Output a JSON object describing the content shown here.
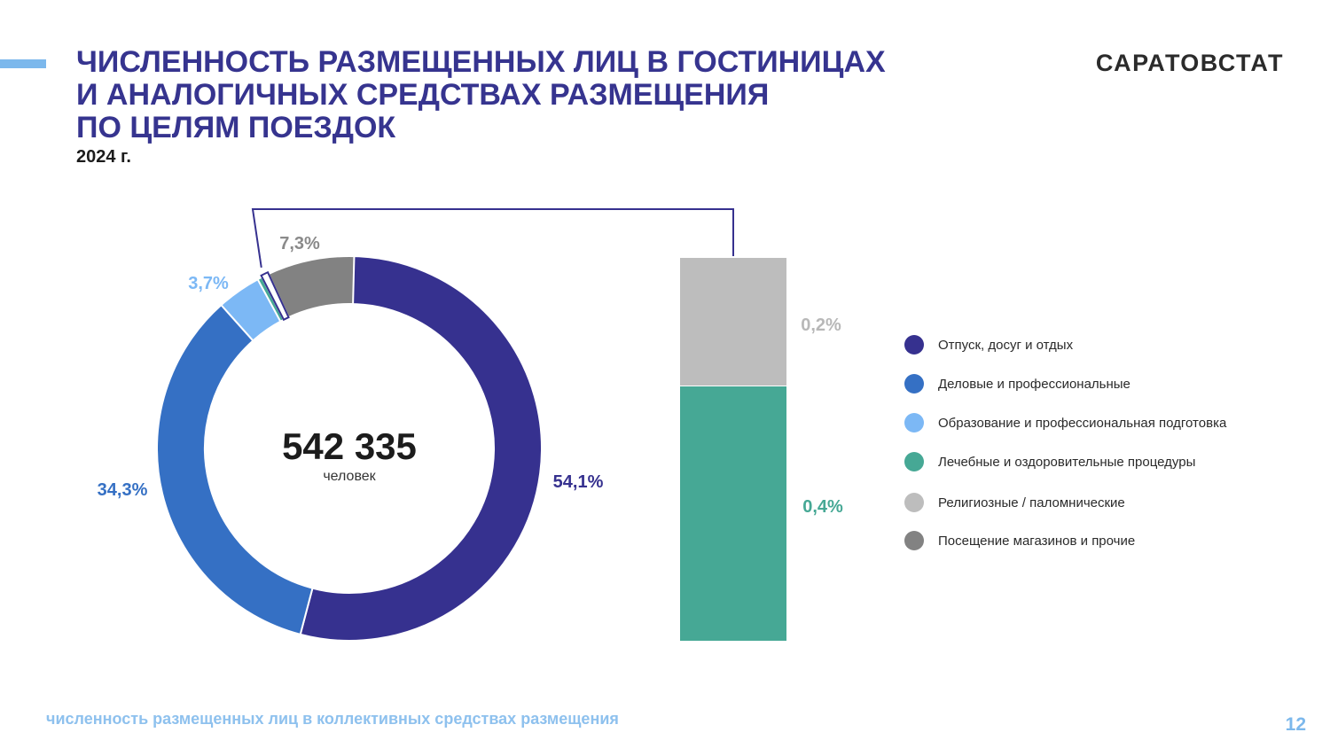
{
  "header": {
    "title": "ЧИСЛЕННОСТЬ РАЗМЕЩЕННЫХ ЛИЦ В ГОСТИНИЦАХ\nИ АНАЛОГИЧНЫХ СРЕДСТВАХ РАЗМЕЩЕНИЯ\nПО ЦЕЛЯМ ПОЕЗДОК",
    "subtitle": "2024 г.",
    "brand": "САРАТОВСТАТ"
  },
  "footer": {
    "note": "численность размещенных лиц в коллективных средствах размещения",
    "page_number": "12"
  },
  "chart_data": {
    "type": "pie",
    "variant": "donut with bar-of-pie breakout",
    "total_value": "542 335",
    "total_unit": "человек",
    "series": [
      {
        "name": "Отпуск, досуг и отдых",
        "value": 54.1,
        "label": "54,1%",
        "color": "#36318f",
        "label_color": "#36318f"
      },
      {
        "name": "Деловые и профессиональные",
        "value": 34.3,
        "label": "34,3%",
        "color": "#3570c4",
        "label_color": "#3570c4"
      },
      {
        "name": "Образование и профессиональная подготовка",
        "value": 3.7,
        "label": "3,7%",
        "color": "#7cb8f5",
        "label_color": "#7cb8f5"
      },
      {
        "name": "Лечебные и оздоровительные процедуры",
        "value": 0.4,
        "label": "0,4%",
        "color": "#46a895",
        "label_color": "#46a895"
      },
      {
        "name": "Религиозные / паломнические",
        "value": 0.2,
        "label": "0,2%",
        "color": "#bdbdbd",
        "label_color": "#b8b8b8"
      },
      {
        "name": "Посещение магазинов и прочие",
        "value": 7.3,
        "label": "7,3%",
        "color": "#828282",
        "label_color": "#8a8a8a"
      }
    ],
    "breakout_categories": [
      "Религиозные / паломнические",
      "Лечебные и оздоровительные процедуры"
    ],
    "legend_position": "right"
  }
}
